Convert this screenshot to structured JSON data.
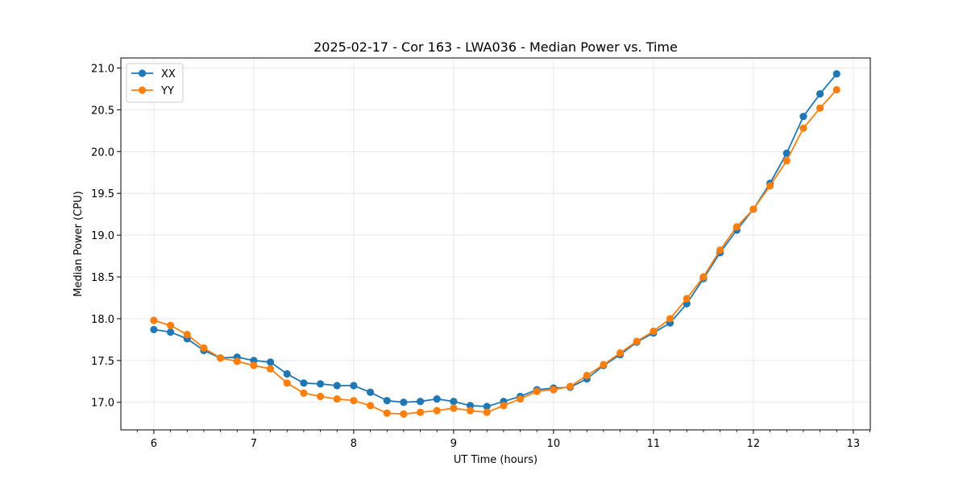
{
  "chart_data": {
    "type": "line",
    "title": "2025-02-17 - Cor 163 - LWA036 - Median Power vs. Time",
    "xlabel": "UT Time (hours)",
    "ylabel": "Median Power (CPU)",
    "xlim": [
      5.67,
      13.17
    ],
    "ylim": [
      16.67,
      21.12
    ],
    "xticks": [
      6,
      7,
      8,
      9,
      10,
      11,
      12,
      13
    ],
    "xtick_labels": [
      "6",
      "7",
      "8",
      "9",
      "10",
      "11",
      "12",
      "13"
    ],
    "yticks": [
      17.0,
      17.5,
      18.0,
      18.5,
      19.0,
      19.5,
      20.0,
      20.5,
      21.0
    ],
    "ytick_labels": [
      "17.0",
      "17.5",
      "18.0",
      "18.5",
      "19.0",
      "19.5",
      "20.0",
      "20.5",
      "21.0"
    ],
    "grid": true,
    "legend_position": "top-left",
    "x": [
      6.0,
      6.1667,
      6.3333,
      6.5,
      6.6667,
      6.8333,
      7.0,
      7.1667,
      7.3333,
      7.5,
      7.6667,
      7.8333,
      8.0,
      8.1667,
      8.3333,
      8.5,
      8.6667,
      8.8333,
      9.0,
      9.1667,
      9.3333,
      9.5,
      9.6667,
      9.8333,
      10.0,
      10.1667,
      10.3333,
      10.5,
      10.6667,
      10.8333,
      11.0,
      11.1667,
      11.3333,
      11.5,
      11.6667,
      11.8333,
      12.0,
      12.1667,
      12.3333,
      12.5,
      12.6667,
      12.8333
    ],
    "series": [
      {
        "name": "XX",
        "color": "#1f77b4",
        "values": [
          17.87,
          17.84,
          17.76,
          17.62,
          17.53,
          17.54,
          17.5,
          17.48,
          17.34,
          17.23,
          17.22,
          17.2,
          17.2,
          17.12,
          17.02,
          17.0,
          17.01,
          17.04,
          17.01,
          16.96,
          16.95,
          17.01,
          17.07,
          17.15,
          17.17,
          17.18,
          17.28,
          17.44,
          17.57,
          17.72,
          17.83,
          17.95,
          18.18,
          18.48,
          18.79,
          19.06,
          19.31,
          19.62,
          19.98,
          20.42,
          20.69,
          20.93
        ]
      },
      {
        "name": "YY",
        "color": "#ff7f0e",
        "values": [
          17.98,
          17.92,
          17.81,
          17.65,
          17.53,
          17.49,
          17.44,
          17.4,
          17.23,
          17.11,
          17.07,
          17.04,
          17.02,
          16.96,
          16.87,
          16.86,
          16.88,
          16.9,
          16.93,
          16.9,
          16.88,
          16.96,
          17.04,
          17.13,
          17.15,
          17.19,
          17.32,
          17.45,
          17.59,
          17.73,
          17.85,
          18.0,
          18.24,
          18.5,
          18.82,
          19.1,
          19.31,
          19.59,
          19.89,
          20.28,
          20.52,
          20.74
        ]
      }
    ]
  }
}
